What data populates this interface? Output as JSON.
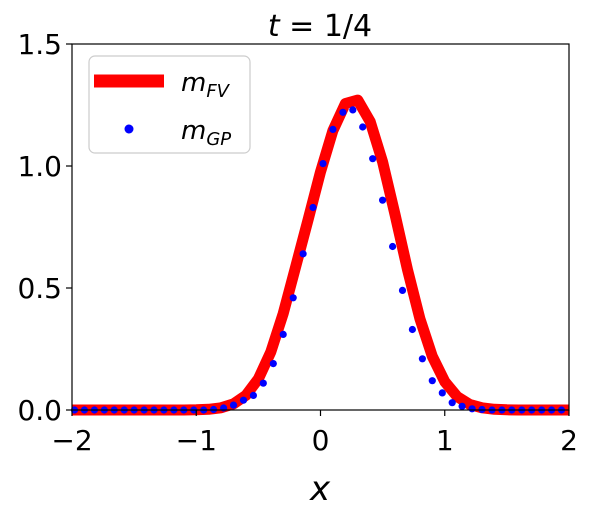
{
  "chart_data": {
    "type": "line",
    "title": "t = 1/4",
    "xlabel": "x",
    "ylabel": "",
    "xlim": [
      -2,
      2
    ],
    "ylim": [
      0,
      1.5
    ],
    "xticks": [
      -2,
      -1,
      0,
      1,
      2
    ],
    "xtick_labels": [
      "−2",
      "−1",
      "0",
      "1",
      "2"
    ],
    "yticks": [
      0,
      0.5,
      1.0,
      1.5
    ],
    "ytick_labels": [
      "0.0",
      "0.5",
      "1.0",
      "1.5"
    ],
    "grid": false,
    "legend_position": "top-left",
    "series": [
      {
        "name": "m_FV",
        "legend_main": "m",
        "legend_sub": "FV",
        "style": "line",
        "color": "#ff0000",
        "x": [
          -2.0,
          -1.9,
          -1.8,
          -1.7,
          -1.6,
          -1.5,
          -1.4,
          -1.3,
          -1.2,
          -1.1,
          -1.0,
          -0.9,
          -0.8,
          -0.7,
          -0.6,
          -0.5,
          -0.4,
          -0.3,
          -0.2,
          -0.1,
          0.0,
          0.1,
          0.2,
          0.3,
          0.4,
          0.5,
          0.6,
          0.7,
          0.8,
          0.9,
          1.0,
          1.1,
          1.2,
          1.3,
          1.4,
          1.5,
          1.6,
          1.7,
          1.8,
          1.9,
          2.0
        ],
        "y": [
          0.0,
          0.0,
          0.0,
          0.0,
          0.0,
          0.0,
          0.0,
          0.0,
          0.0,
          0.0,
          0.001,
          0.003,
          0.009,
          0.025,
          0.06,
          0.128,
          0.238,
          0.395,
          0.586,
          0.78,
          0.976,
          1.145,
          1.256,
          1.27,
          1.182,
          1.017,
          0.8,
          0.575,
          0.374,
          0.22,
          0.116,
          0.055,
          0.023,
          0.009,
          0.003,
          0.001,
          0.0,
          0.0,
          0.0,
          0.0,
          0.0
        ]
      },
      {
        "name": "m_GP",
        "legend_main": "m",
        "legend_sub": "GP",
        "style": "markers",
        "color": "#0000ff",
        "x": [
          -1.98,
          -1.9,
          -1.82,
          -1.74,
          -1.66,
          -1.58,
          -1.5,
          -1.42,
          -1.34,
          -1.26,
          -1.18,
          -1.1,
          -1.02,
          -0.94,
          -0.86,
          -0.78,
          -0.7,
          -0.62,
          -0.54,
          -0.46,
          -0.38,
          -0.3,
          -0.22,
          -0.14,
          -0.06,
          0.02,
          0.1,
          0.18,
          0.26,
          0.34,
          0.42,
          0.5,
          0.58,
          0.66,
          0.74,
          0.82,
          0.9,
          0.98,
          1.06,
          1.14,
          1.22,
          1.3,
          1.38,
          1.46,
          1.54,
          1.62,
          1.7,
          1.78,
          1.86,
          1.94
        ],
        "y": [
          0.0,
          0.0,
          0.0,
          0.0,
          0.0,
          0.0,
          0.0,
          0.0,
          0.0,
          0.0,
          0.0,
          0.0,
          0.0,
          0.0,
          0.002,
          0.008,
          0.02,
          0.04,
          0.06,
          0.11,
          0.19,
          0.31,
          0.46,
          0.64,
          0.83,
          1.01,
          1.15,
          1.22,
          1.23,
          1.16,
          1.03,
          0.86,
          0.67,
          0.49,
          0.33,
          0.21,
          0.12,
          0.07,
          0.03,
          0.015,
          0.005,
          0.002,
          0.0,
          0.0,
          0.0,
          0.0,
          0.0,
          0.0,
          0.0,
          0.0
        ]
      }
    ]
  }
}
